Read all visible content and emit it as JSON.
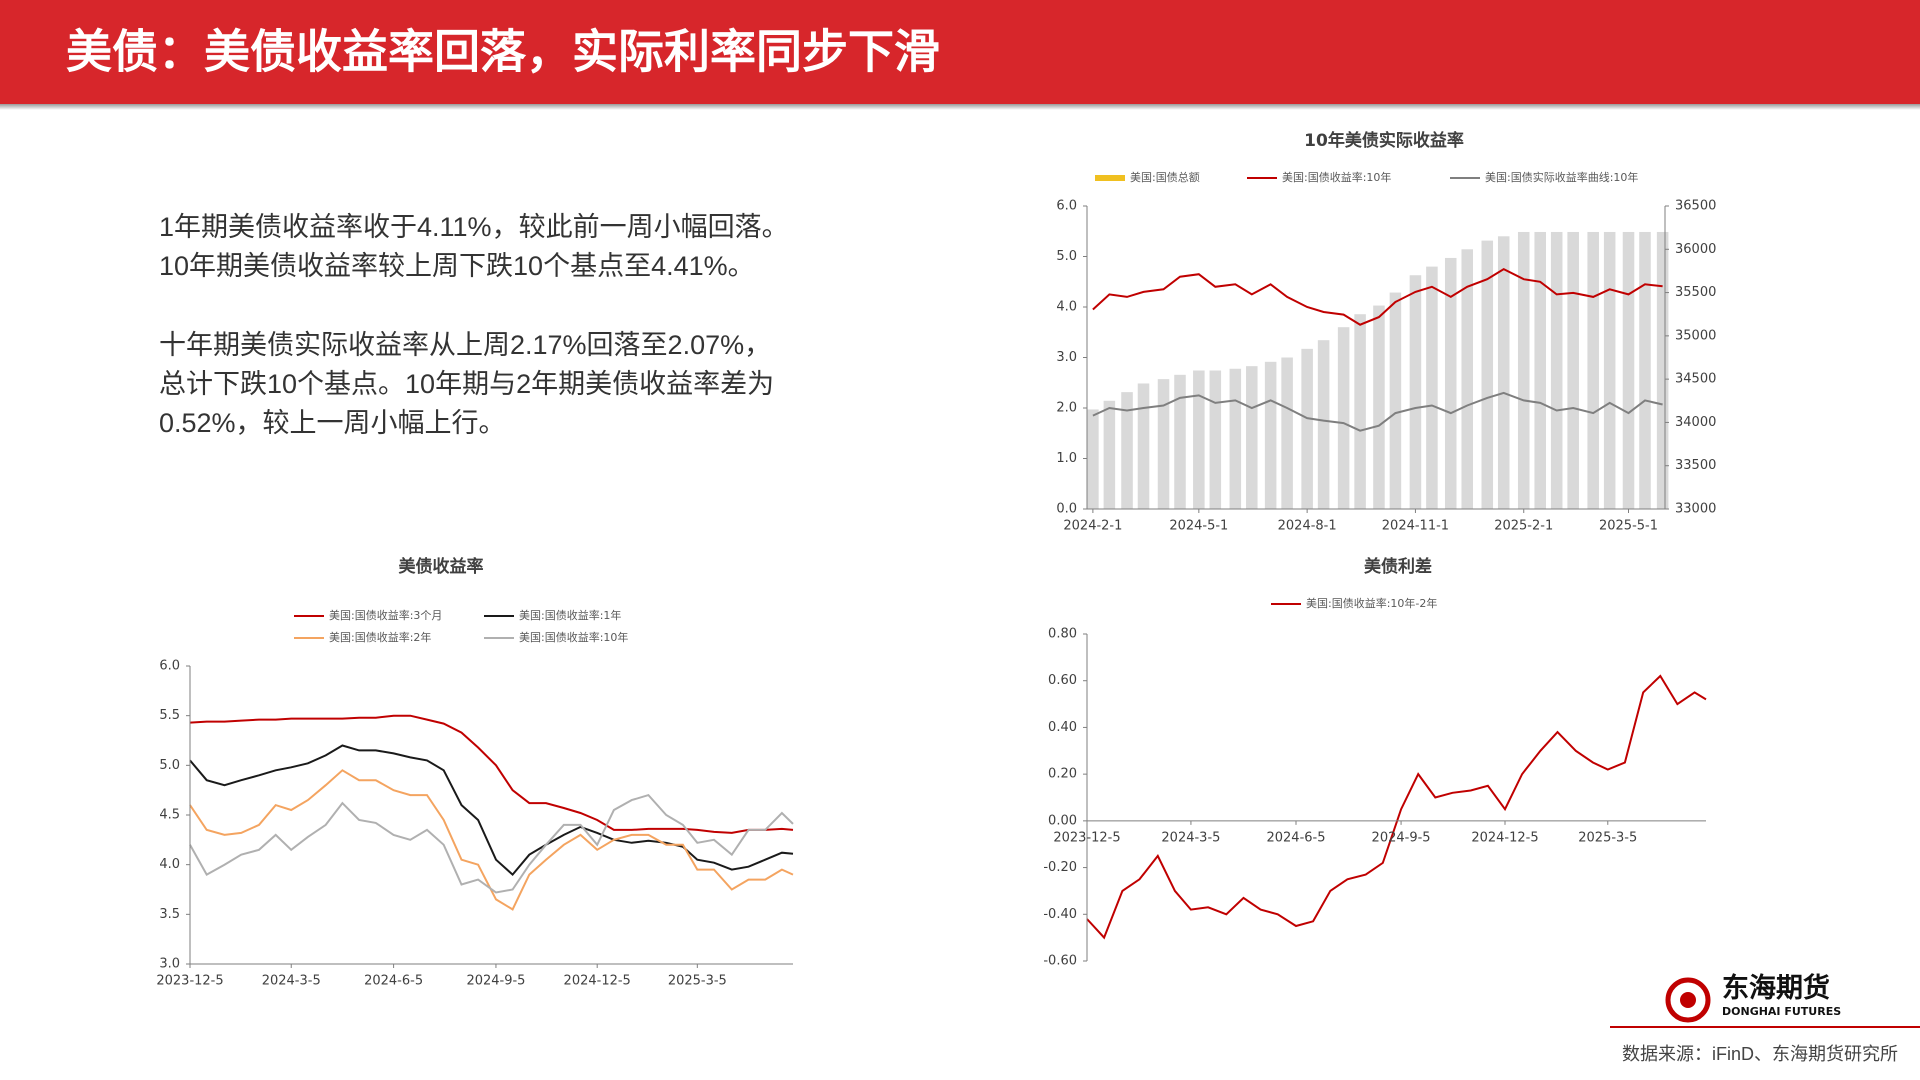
{
  "header": {
    "title": "美债：美债收益率回落，实际利率同步下滑"
  },
  "body": {
    "paragraphs": [
      [
        "1年期美债收益率收于4.11%，较此前一周小幅回落。",
        "10年期美债收益率较上周下跌10个基点至4.41%。"
      ],
      [
        "十年期美债实际收益率从上周2.17%回落至2.07%，",
        "总计下跌10个基点。10年期与2年期美债收益率差为",
        "0.52%，较上一周小幅上行。"
      ]
    ]
  },
  "chart_data": [
    {
      "type": "combo",
      "title": "10年美债实际收益率",
      "x": [
        "2024-2-1",
        "2024-2-15",
        "2024-3-1",
        "2024-3-15",
        "2024-4-1",
        "2024-4-15",
        "2024-5-1",
        "2024-5-15",
        "2024-6-1",
        "2024-6-15",
        "2024-7-1",
        "2024-7-15",
        "2024-8-1",
        "2024-8-15",
        "2024-9-1",
        "2024-9-15",
        "2024-10-1",
        "2024-10-15",
        "2024-11-1",
        "2024-11-15",
        "2024-12-1",
        "2024-12-15",
        "2025-1-1",
        "2025-1-15",
        "2025-2-1",
        "2025-2-15",
        "2025-3-1",
        "2025-3-15",
        "2025-4-1",
        "2025-4-15",
        "2025-5-1",
        "2025-5-15",
        "2025-5-30"
      ],
      "series": [
        {
          "name": "美国:国债总额",
          "type": "bar",
          "axis": "y2",
          "color": "#d9d9d9",
          "legend_color": "#f0c020",
          "values": [
            34150,
            34250,
            34350,
            34450,
            34500,
            34550,
            34600,
            34600,
            34620,
            34650,
            34700,
            34750,
            34850,
            34950,
            35100,
            35250,
            35350,
            35500,
            35700,
            35800,
            35900,
            36000,
            36100,
            36150,
            36200,
            36200,
            36200,
            36200,
            36200,
            36200,
            36200,
            36200,
            36200
          ]
        },
        {
          "name": "美国:国债收益率:10年",
          "type": "line",
          "color": "#c00000",
          "values": [
            3.95,
            4.25,
            4.2,
            4.3,
            4.35,
            4.6,
            4.65,
            4.4,
            4.45,
            4.25,
            4.45,
            4.2,
            4.0,
            3.9,
            3.85,
            3.65,
            3.8,
            4.1,
            4.3,
            4.4,
            4.2,
            4.4,
            4.55,
            4.75,
            4.55,
            4.5,
            4.25,
            4.28,
            4.2,
            4.35,
            4.25,
            4.45,
            4.41
          ]
        },
        {
          "name": "美国:国债实际收益率曲线:10年",
          "type": "line",
          "color": "#7f7f7f",
          "values": [
            1.85,
            2.0,
            1.95,
            2.0,
            2.05,
            2.2,
            2.25,
            2.1,
            2.15,
            2.0,
            2.15,
            2.0,
            1.8,
            1.75,
            1.7,
            1.55,
            1.65,
            1.9,
            2.0,
            2.05,
            1.9,
            2.05,
            2.2,
            2.3,
            2.15,
            2.1,
            1.95,
            2.0,
            1.9,
            2.1,
            1.9,
            2.15,
            2.07
          ]
        }
      ],
      "xlim": [
        "2024-1-27",
        "2025-6-1"
      ],
      "xticks": [
        "2024-2-1",
        "2024-5-1",
        "2024-8-1",
        "2024-11-1",
        "2025-2-1",
        "2025-5-1"
      ],
      "ylim": [
        0,
        6
      ],
      "yticks": [
        {
          "value": 0,
          "label": "0.0"
        },
        {
          "value": 1,
          "label": "1.0"
        },
        {
          "value": 2,
          "label": "2.0"
        },
        {
          "value": 3,
          "label": "3.0"
        },
        {
          "value": 4,
          "label": "4.0"
        },
        {
          "value": 5,
          "label": "5.0"
        },
        {
          "value": 6,
          "label": "6.0"
        }
      ],
      "y2lim": [
        33000,
        36500
      ],
      "y2ticks": [
        33000,
        33500,
        34000,
        34500,
        35000,
        35500,
        36000,
        36500
      ],
      "grid": false
    },
    {
      "type": "line",
      "title": "美债收益率",
      "x": [
        "2023-12-5",
        "2023-12-20",
        "2024-1-5",
        "2024-1-20",
        "2024-2-5",
        "2024-2-20",
        "2024-3-5",
        "2024-3-20",
        "2024-4-5",
        "2024-4-20",
        "2024-5-5",
        "2024-5-20",
        "2024-6-5",
        "2024-6-20",
        "2024-7-5",
        "2024-7-20",
        "2024-8-5",
        "2024-8-20",
        "2024-9-5",
        "2024-9-20",
        "2024-10-5",
        "2024-10-20",
        "2024-11-5",
        "2024-11-20",
        "2024-12-5",
        "2024-12-20",
        "2025-1-5",
        "2025-1-20",
        "2025-2-5",
        "2025-2-20",
        "2025-3-5",
        "2025-3-20",
        "2025-4-5",
        "2025-4-20",
        "2025-5-5",
        "2025-5-20",
        "2025-5-30"
      ],
      "series": [
        {
          "name": "美国:国债收益率:3个月",
          "color": "#c00000",
          "values": [
            5.43,
            5.44,
            5.44,
            5.45,
            5.46,
            5.46,
            5.47,
            5.47,
            5.47,
            5.47,
            5.48,
            5.48,
            5.5,
            5.5,
            5.46,
            5.42,
            5.33,
            5.18,
            5.0,
            4.75,
            4.62,
            4.62,
            4.57,
            4.52,
            4.45,
            4.35,
            4.35,
            4.36,
            4.36,
            4.36,
            4.35,
            4.33,
            4.32,
            4.35,
            4.35,
            4.36,
            4.35
          ]
        },
        {
          "name": "美国:国债收益率:1年",
          "color": "#1a1a1a",
          "values": [
            5.05,
            4.85,
            4.8,
            4.85,
            4.9,
            4.95,
            4.98,
            5.02,
            5.1,
            5.2,
            5.15,
            5.15,
            5.12,
            5.08,
            5.05,
            4.95,
            4.6,
            4.45,
            4.05,
            3.9,
            4.1,
            4.2,
            4.3,
            4.38,
            4.32,
            4.25,
            4.22,
            4.24,
            4.22,
            4.18,
            4.05,
            4.02,
            3.95,
            3.98,
            4.05,
            4.12,
            4.11
          ]
        },
        {
          "name": "美国:国债收益率:2年",
          "color": "#f4a460",
          "values": [
            4.6,
            4.35,
            4.3,
            4.32,
            4.4,
            4.6,
            4.55,
            4.65,
            4.8,
            4.95,
            4.85,
            4.85,
            4.75,
            4.7,
            4.7,
            4.45,
            4.05,
            4.0,
            3.65,
            3.55,
            3.9,
            4.05,
            4.2,
            4.3,
            4.15,
            4.25,
            4.3,
            4.3,
            4.2,
            4.2,
            3.95,
            3.95,
            3.75,
            3.85,
            3.85,
            3.95,
            3.9
          ]
        },
        {
          "name": "美国:国债收益率:10年",
          "color": "#b0b0b0",
          "values": [
            4.2,
            3.9,
            4.0,
            4.1,
            4.15,
            4.3,
            4.15,
            4.28,
            4.4,
            4.62,
            4.45,
            4.42,
            4.3,
            4.25,
            4.35,
            4.2,
            3.8,
            3.85,
            3.72,
            3.75,
            4.0,
            4.2,
            4.4,
            4.4,
            4.2,
            4.55,
            4.65,
            4.7,
            4.5,
            4.4,
            4.22,
            4.25,
            4.1,
            4.35,
            4.35,
            4.52,
            4.41
          ]
        }
      ],
      "xlim": [
        "2023-12-5",
        "2025-5-30"
      ],
      "xticks": [
        "2023-12-5",
        "2024-3-5",
        "2024-6-5",
        "2024-9-5",
        "2024-12-5",
        "2025-3-5"
      ],
      "ylim": [
        3,
        6
      ],
      "yticks": [
        {
          "value": 3,
          "label": "3.0"
        },
        {
          "value": 3.5,
          "label": "3.5"
        },
        {
          "value": 4,
          "label": "4.0"
        },
        {
          "value": 4.5,
          "label": "4.5"
        },
        {
          "value": 5,
          "label": "5.0"
        },
        {
          "value": 5.5,
          "label": "5.5"
        },
        {
          "value": 6,
          "label": "6.0"
        }
      ],
      "grid": false
    },
    {
      "type": "line",
      "title": "美债利差",
      "x": [
        "2023-12-5",
        "2023-12-20",
        "2024-1-5",
        "2024-1-20",
        "2024-2-5",
        "2024-2-20",
        "2024-3-5",
        "2024-3-20",
        "2024-4-5",
        "2024-4-20",
        "2024-5-5",
        "2024-5-20",
        "2024-6-5",
        "2024-6-20",
        "2024-7-5",
        "2024-7-20",
        "2024-8-5",
        "2024-8-20",
        "2024-9-5",
        "2024-9-20",
        "2024-10-5",
        "2024-10-20",
        "2024-11-5",
        "2024-11-20",
        "2024-12-5",
        "2024-12-20",
        "2025-1-5",
        "2025-1-20",
        "2025-2-5",
        "2025-2-20",
        "2025-3-5",
        "2025-3-20",
        "2025-4-5",
        "2025-4-20",
        "2025-5-5",
        "2025-5-20",
        "2025-5-30"
      ],
      "series": [
        {
          "name": "美国:国债收益率:10年-2年",
          "color": "#c00000",
          "values": [
            -0.42,
            -0.5,
            -0.3,
            -0.25,
            -0.15,
            -0.3,
            -0.38,
            -0.37,
            -0.4,
            -0.33,
            -0.38,
            -0.4,
            -0.45,
            -0.43,
            -0.3,
            -0.25,
            -0.23,
            -0.18,
            0.05,
            0.2,
            0.1,
            0.12,
            0.13,
            0.15,
            0.05,
            0.2,
            0.3,
            0.38,
            0.3,
            0.25,
            0.22,
            0.25,
            0.55,
            0.62,
            0.5,
            0.55,
            0.52
          ]
        }
      ],
      "xlim": [
        "2023-12-5",
        "2025-5-30"
      ],
      "xticks": [
        "2023-12-5",
        "2024-3-5",
        "2024-6-5",
        "2024-9-5",
        "2024-12-5",
        "2025-3-5"
      ],
      "ylim": [
        -0.6,
        0.8
      ],
      "yticks": [
        {
          "value": -0.6,
          "label": "-0.60"
        },
        {
          "value": -0.4,
          "label": "-0.40"
        },
        {
          "value": -0.2,
          "label": "-0.20"
        },
        {
          "value": 0,
          "label": "0.00"
        },
        {
          "value": 0.2,
          "label": "0.20"
        },
        {
          "value": 0.4,
          "label": "0.40"
        },
        {
          "value": 0.6,
          "label": "0.60"
        },
        {
          "value": 0.8,
          "label": "0.80"
        }
      ],
      "grid": false
    }
  ],
  "logo": {
    "name": "东海期货",
    "subtitle": "DONGHAI FUTURES"
  },
  "source": "数据来源：iFinD、东海期货研究所"
}
